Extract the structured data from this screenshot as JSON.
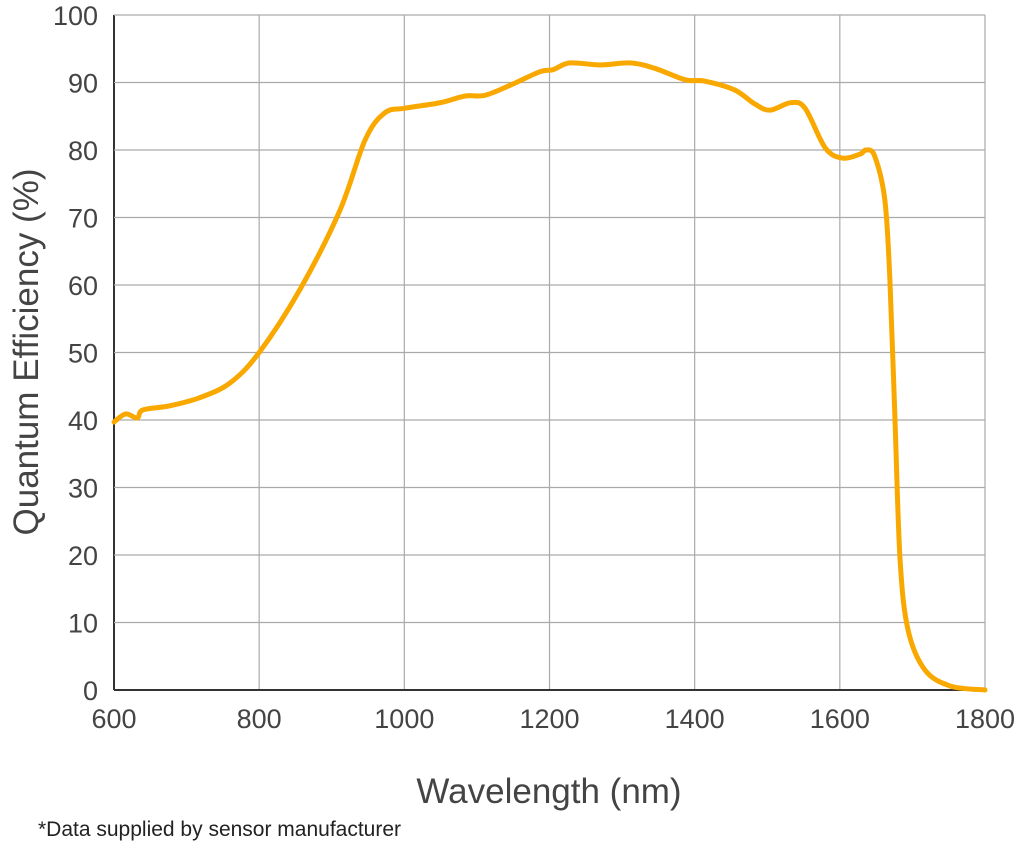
{
  "chart_data": {
    "type": "line",
    "title": "",
    "xlabel": "Wavelength (nm)",
    "ylabel": "Quantum Efficiency (%)",
    "xlim": [
      600,
      1800
    ],
    "ylim": [
      0,
      100
    ],
    "xticks": [
      "600",
      "800",
      "1000",
      "1200",
      "1400",
      "1600",
      "1800"
    ],
    "yticks": [
      "0",
      "10",
      "20",
      "30",
      "40",
      "50",
      "60",
      "70",
      "80",
      "90",
      "100"
    ],
    "grid": true,
    "line_color": "#F9A800",
    "series": [
      {
        "x": [
          600,
          616,
          632,
          640,
          677,
          718,
          760,
          800,
          856,
          911,
          946,
          973,
          1001,
          1049,
          1084,
          1111,
          1146,
          1187,
          1205,
          1228,
          1270,
          1311,
          1345,
          1387,
          1414,
          1455,
          1483,
          1504,
          1532,
          1552,
          1580,
          1604,
          1628,
          1636,
          1648,
          1662,
          1669,
          1676,
          1683,
          1694,
          1717,
          1752,
          1800
        ],
        "y": [
          39.7,
          40.9,
          40.3,
          41.5,
          42.1,
          43.3,
          45.5,
          50,
          59.3,
          71,
          81.5,
          85.5,
          86.2,
          87,
          88,
          88.1,
          89.6,
          91.6,
          91.9,
          92.9,
          92.6,
          92.9,
          92.1,
          90.4,
          90.2,
          88.9,
          86.8,
          85.9,
          87,
          86.2,
          80.3,
          78.8,
          79.4,
          80,
          79.1,
          72.6,
          60.7,
          40,
          19.3,
          8.9,
          3,
          0.6,
          0
        ]
      }
    ]
  },
  "footnote": "*Data supplied by sensor manufacturer"
}
